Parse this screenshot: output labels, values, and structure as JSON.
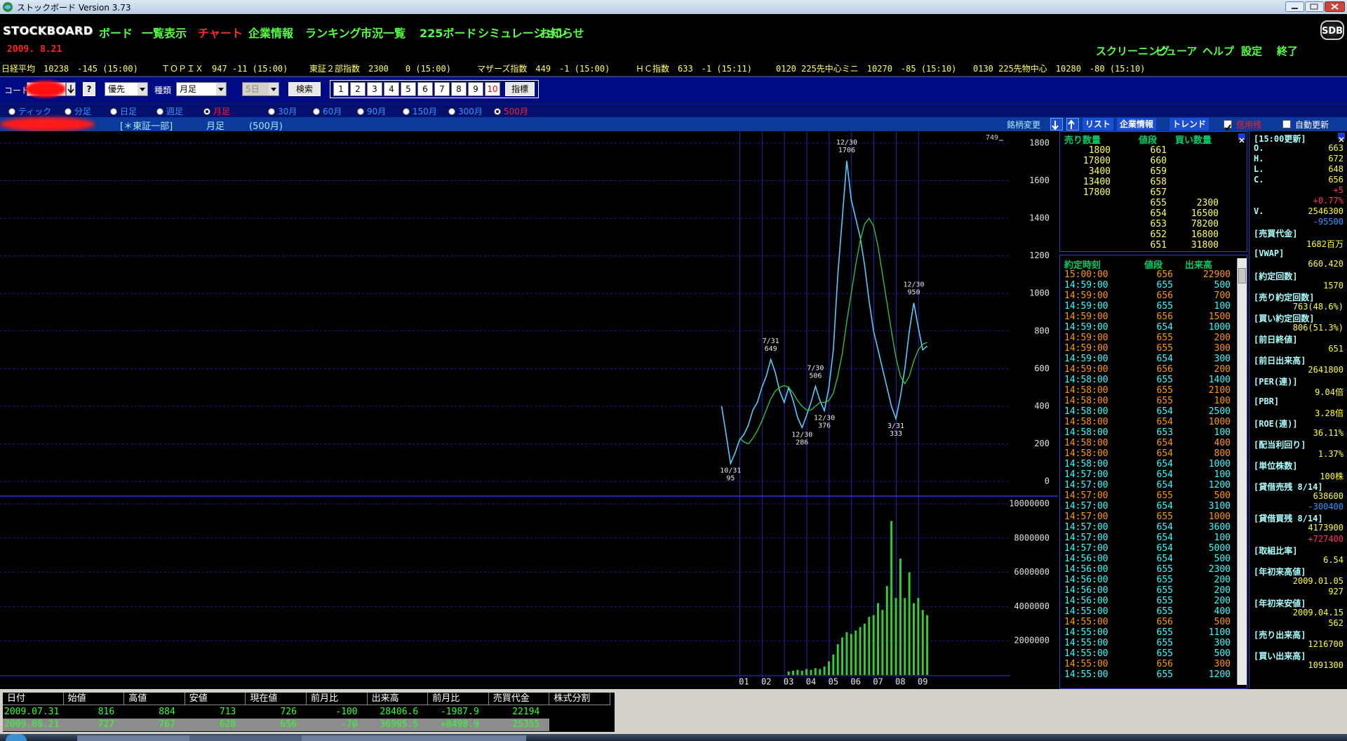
{
  "window": {
    "title": "ストックボード Version 3.73"
  },
  "menu": {
    "logo": "STOCKBOARD",
    "date": "2009. 8.21",
    "badge": "SDB",
    "items": [
      {
        "label": "ボード",
        "color": "#55ff44"
      },
      {
        "label": "一覧表示",
        "color": "#55ff44"
      },
      {
        "label": "チャート",
        "color": "#ff2a2a"
      },
      {
        "label": "企業情報",
        "color": "#55ff44"
      },
      {
        "label": "ランキング",
        "color": "#55ff44"
      },
      {
        "label": "市況一覧",
        "color": "#55ff44"
      },
      {
        "label": "225ボード",
        "color": "#55ff44"
      },
      {
        "label": "シミュレーション",
        "color": "#55ff44"
      },
      {
        "label": "お知らせ",
        "color": "#55ff44"
      }
    ],
    "right_items": [
      "スクリーニング",
      "ビューア",
      "ヘルプ",
      "設定",
      "終了"
    ]
  },
  "ticker": [
    "日経平均　10238　-145 (15:00)",
    "ＴＯＰＩＸ　947 -11 (15:00)",
    "東証２部指数　2300　　0 (15:00)",
    "マザーズ指数　449　-1 (15:00)",
    "ＨＣ指数　633　-1 (15:11)",
    "0120 225先中心ミニ　10270　-85 (15:10)",
    "0130 225先物中心　10280　-80 (15:10)"
  ],
  "toolbar": {
    "code_label": "コード",
    "help": "?",
    "priority": "優先",
    "kind_label": "種類",
    "kind": "月足",
    "period": "5日",
    "search": "検索",
    "pages": [
      1,
      2,
      3,
      4,
      5,
      6,
      7,
      8,
      9,
      10
    ],
    "indicator": "指標"
  },
  "ranges": [
    {
      "label": "ティック",
      "checked": false
    },
    {
      "label": "分足",
      "checked": false
    },
    {
      "label": "日足",
      "checked": false
    },
    {
      "label": "週足",
      "checked": false
    },
    {
      "label": "月足",
      "checked": true
    },
    {
      "label": "30月",
      "checked": false
    },
    {
      "label": "60月",
      "checked": false
    },
    {
      "label": "90月",
      "checked": false
    },
    {
      "label": "150月",
      "checked": false
    },
    {
      "label": "300月",
      "checked": false
    },
    {
      "label": "500月",
      "checked": true
    }
  ],
  "chart_header": {
    "market": "[＊東証一部]",
    "span": "月足",
    "count": "(500月)",
    "change": "銘柄変更",
    "buttons": [
      "リスト",
      "企業情報",
      "トレンド"
    ],
    "checks": [
      {
        "label": "信用残",
        "checked": true,
        "color": "#ff2020"
      },
      {
        "label": "自動更新",
        "checked": false,
        "color": "#ffffff"
      }
    ]
  },
  "chart_data": [
    {
      "type": "line",
      "corner_label": 749,
      "series": [
        {
          "color": "#55ccff",
          "values": [
            400,
            250,
            95,
            150,
            220,
            250,
            300,
            380,
            420,
            500,
            560,
            649,
            580,
            480,
            420,
            500,
            430,
            340,
            286,
            350,
            420,
            506,
            430,
            376,
            500,
            700,
            1100,
            1400,
            1706,
            1500,
            1400,
            1300,
            1150,
            960,
            800,
            700,
            600,
            500,
            400,
            333,
            450,
            600,
            800,
            950,
            820,
            700,
            720
          ]
        },
        {
          "color": "#33cc33",
          "values": [
            null,
            null,
            null,
            null,
            230,
            210,
            200,
            230,
            270,
            320,
            380,
            440,
            480,
            500,
            510,
            500,
            470,
            430,
            400,
            380,
            380,
            400,
            420,
            420,
            430,
            470,
            560,
            680,
            850,
            1000,
            1150,
            1280,
            1370,
            1400,
            1360,
            1250,
            1100,
            950,
            800,
            660,
            560,
            520,
            560,
            640,
            700,
            730,
            740
          ]
        }
      ],
      "ylim": [
        0,
        1800
      ],
      "yticks": [
        0,
        200,
        400,
        600,
        800,
        1000,
        1200,
        1400,
        1600,
        1800
      ],
      "grid": true,
      "annotations": [
        {
          "date": "10/31",
          "value": 95
        },
        {
          "date": "7/31",
          "value": 649
        },
        {
          "date": "12/30",
          "value": 286
        },
        {
          "date": "7/30",
          "value": 506
        },
        {
          "date": "12/30",
          "value": 376
        },
        {
          "date": "12/30",
          "value": 1706
        },
        {
          "date": "3/31",
          "value": 333
        },
        {
          "date": "12/30",
          "value": 950
        }
      ]
    },
    {
      "type": "bar",
      "color": "#33cc33",
      "categories": [
        null,
        null,
        null,
        null,
        null,
        "01",
        null,
        null,
        null,
        null,
        "02",
        null,
        null,
        null,
        null,
        "03",
        null,
        null,
        null,
        null,
        "04",
        null,
        null,
        null,
        null,
        "05",
        null,
        null,
        null,
        null,
        "06",
        null,
        null,
        null,
        null,
        "07",
        null,
        null,
        null,
        null,
        "08",
        null,
        null,
        null,
        null,
        "09",
        null
      ],
      "values": [
        0,
        0,
        0,
        0,
        0,
        0,
        0,
        0,
        0,
        0,
        0,
        0,
        0,
        0,
        0,
        200000,
        250000,
        300000,
        250000,
        350000,
        300000,
        400000,
        350000,
        500000,
        800000,
        1200000,
        1800000,
        2200000,
        2500000,
        2400000,
        2600000,
        2800000,
        3000000,
        3400000,
        3500000,
        4200000,
        3800000,
        5200000,
        9000000,
        4500000,
        6800000,
        4500000,
        6000000,
        4200000,
        4500000,
        3800000,
        3500000
      ],
      "ylim": [
        0,
        10000000
      ],
      "yticks": [
        2000000,
        4000000,
        6000000,
        8000000,
        10000000
      ],
      "grid": true
    }
  ],
  "order_book": {
    "headers": [
      "売り数量",
      "値段",
      "買い数量"
    ],
    "asks": [
      {
        "volume": 1800,
        "price": 661
      },
      {
        "volume": 17800,
        "price": 660
      },
      {
        "volume": 3400,
        "price": 659
      },
      {
        "volume": 13400,
        "price": 658
      },
      {
        "volume": 17800,
        "price": 657
      }
    ],
    "bids": [
      {
        "price": 655,
        "volume": 2300
      },
      {
        "price": 654,
        "volume": 16500
      },
      {
        "price": 653,
        "volume": 78200
      },
      {
        "price": 652,
        "volume": 16800
      },
      {
        "price": 651,
        "volume": 31800
      }
    ]
  },
  "trades": {
    "headers": [
      "約定時刻",
      "値段",
      "出来高"
    ],
    "rows": [
      {
        "time": "15:00:00",
        "price": 656,
        "volume": 22900,
        "color": "#ff9900"
      },
      {
        "time": "14:59:00",
        "price": 655,
        "volume": 500,
        "color": "#33ffff"
      },
      {
        "time": "14:59:00",
        "price": 656,
        "volume": 700,
        "color": "#ff9900"
      },
      {
        "time": "14:59:00",
        "price": 655,
        "volume": 100,
        "color": "#33ffff"
      },
      {
        "time": "14:59:00",
        "price": 656,
        "volume": 1500,
        "color": "#ff9900"
      },
      {
        "time": "14:59:00",
        "price": 654,
        "volume": 1000,
        "color": "#33ffff"
      },
      {
        "time": "14:59:00",
        "price": 655,
        "volume": 200,
        "color": "#ff9900"
      },
      {
        "time": "14:59:00",
        "price": 655,
        "volume": 300,
        "color": "#ff9900"
      },
      {
        "time": "14:59:00",
        "price": 654,
        "volume": 300,
        "color": "#33ffff"
      },
      {
        "time": "14:59:00",
        "price": 656,
        "volume": 200,
        "color": "#ff9900"
      },
      {
        "time": "14:58:00",
        "price": 655,
        "volume": 1400,
        "color": "#33ffff"
      },
      {
        "time": "14:58:00",
        "price": 655,
        "volume": 2100,
        "color": "#ff9900"
      },
      {
        "time": "14:58:00",
        "price": 655,
        "volume": 100,
        "color": "#ff9900"
      },
      {
        "time": "14:58:00",
        "price": 654,
        "volume": 2500,
        "color": "#33ffff"
      },
      {
        "time": "14:58:00",
        "price": 654,
        "volume": 1000,
        "color": "#ff9900"
      },
      {
        "time": "14:58:00",
        "price": 653,
        "volume": 100,
        "color": "#33ffff"
      },
      {
        "time": "14:58:00",
        "price": 654,
        "volume": 400,
        "color": "#ff9900"
      },
      {
        "time": "14:58:00",
        "price": 654,
        "volume": 800,
        "color": "#ff9900"
      },
      {
        "time": "14:58:00",
        "price": 654,
        "volume": 1000,
        "color": "#33ffff"
      },
      {
        "time": "14:57:00",
        "price": 654,
        "volume": 100,
        "color": "#33ffff"
      },
      {
        "time": "14:57:00",
        "price": 654,
        "volume": 1200,
        "color": "#33ffff"
      },
      {
        "time": "14:57:00",
        "price": 655,
        "volume": 500,
        "color": "#ff9900"
      },
      {
        "time": "14:57:00",
        "price": 654,
        "volume": 3100,
        "color": "#33ffff"
      },
      {
        "time": "14:57:00",
        "price": 655,
        "volume": 1000,
        "color": "#ff9900"
      },
      {
        "time": "14:57:00",
        "price": 654,
        "volume": 3600,
        "color": "#33ffff"
      },
      {
        "time": "14:57:00",
        "price": 654,
        "volume": 100,
        "color": "#33ffff"
      },
      {
        "time": "14:57:00",
        "price": 654,
        "volume": 5000,
        "color": "#33ffff"
      },
      {
        "time": "14:56:00",
        "price": 654,
        "volume": 500,
        "color": "#33ffff"
      },
      {
        "time": "14:56:00",
        "price": 655,
        "volume": 2300,
        "color": "#33ffff"
      },
      {
        "time": "14:56:00",
        "price": 655,
        "volume": 200,
        "color": "#33ffff"
      },
      {
        "time": "14:56:00",
        "price": 655,
        "volume": 200,
        "color": "#33ffff"
      },
      {
        "time": "14:56:00",
        "price": 655,
        "volume": 200,
        "color": "#33ffff"
      },
      {
        "time": "14:55:00",
        "price": 655,
        "volume": 400,
        "color": "#33ffff"
      },
      {
        "time": "14:55:00",
        "price": 656,
        "volume": 500,
        "color": "#ff9900"
      },
      {
        "time": "14:55:00",
        "price": 655,
        "volume": 1100,
        "color": "#33ffff"
      },
      {
        "time": "14:55:00",
        "price": 655,
        "volume": 300,
        "color": "#33ffff"
      },
      {
        "time": "14:55:00",
        "price": 655,
        "volume": 500,
        "color": "#33ffff"
      },
      {
        "time": "14:55:00",
        "price": 656,
        "volume": 300,
        "color": "#ff9900"
      },
      {
        "time": "14:55:00",
        "price": 655,
        "volume": 1200,
        "color": "#33ffff"
      }
    ]
  },
  "info": [
    {
      "label": "[15:00更新]"
    },
    {
      "label": "O.",
      "value": 663
    },
    {
      "label": "H.",
      "value": 672
    },
    {
      "label": "L.",
      "value": 648
    },
    {
      "label": "C.",
      "value": 656
    },
    {
      "value": "+5",
      "color": "#ff3366"
    },
    {
      "value": "+0.77%",
      "color": "#ff3366"
    },
    {
      "label": "V.",
      "value": 2546300
    },
    {
      "value": -95500,
      "color": "#3399ff"
    },
    {
      "label": "[売買代金]"
    },
    {
      "value": "1682百万"
    },
    {
      "label": "[VWAP]"
    },
    {
      "value": "660.420"
    },
    {
      "label": "[約定回数]"
    },
    {
      "value": 1570
    },
    {
      "label": "[売り約定回数]"
    },
    {
      "value": "763(48.6%)"
    },
    {
      "label": "[買い約定回数]"
    },
    {
      "value": "806(51.3%)"
    },
    {
      "label": "[前日終値]"
    },
    {
      "value": 651
    },
    {
      "label": "[前日出来高]"
    },
    {
      "value": 2641800
    },
    {
      "label": "[PER(連)]"
    },
    {
      "value": "9.04倍"
    },
    {
      "label": "[PBR]"
    },
    {
      "value": "3.28倍"
    },
    {
      "label": "[ROE(連)]"
    },
    {
      "value": "36.11%"
    },
    {
      "label": "[配当利回り]"
    },
    {
      "value": "1.37%"
    },
    {
      "label": "[単位株数]"
    },
    {
      "value": "100株"
    },
    {
      "label": "[貸借売残 8/14]"
    },
    {
      "value": 638600
    },
    {
      "value": -300400,
      "color": "#3399ff"
    },
    {
      "label": "[貸借買残 8/14]"
    },
    {
      "value": 4173900
    },
    {
      "value": "+727400",
      "color": "#ff3366"
    },
    {
      "label": "[取組比率]"
    },
    {
      "value": "6.54"
    },
    {
      "label": "[年初来高値]"
    },
    {
      "value": "2009.01.05"
    },
    {
      "value": 927
    },
    {
      "label": "[年初来安値]"
    },
    {
      "value": "2009.04.15"
    },
    {
      "value": 562
    },
    {
      "label": "[売り出来高]"
    },
    {
      "value": 1216700
    },
    {
      "label": "[買い出来高]"
    },
    {
      "value": 1091300
    }
  ],
  "history": {
    "headers": [
      "日付",
      "始値",
      "高値",
      "安値",
      "現在値",
      "前月比",
      "出来高",
      "前月比",
      "売買代金",
      "株式分割"
    ],
    "rows": [
      [
        "2009.07.31",
        816,
        884,
        713,
        726,
        -100,
        "28406.6",
        "-1987.9",
        22194
      ],
      [
        "2009.08.21",
        727,
        767,
        628,
        656,
        -70,
        "36905.5",
        "+8498.9",
        25355
      ]
    ]
  }
}
